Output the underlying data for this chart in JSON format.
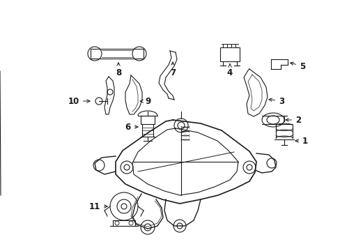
{
  "bg_color": "#ffffff",
  "line_color": "#1a1a1a",
  "fig_width": 4.89,
  "fig_height": 3.6,
  "dpi": 100,
  "label_fontsize": 8.5,
  "lw": 0.8
}
